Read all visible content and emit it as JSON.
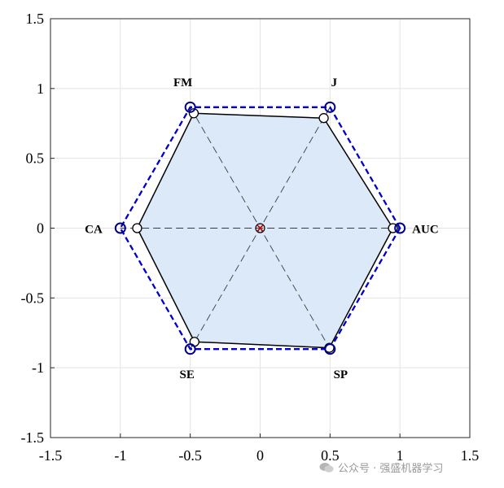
{
  "chart_data": {
    "type": "radar-hexagon",
    "xlim": [
      -1.5,
      1.5
    ],
    "ylim": [
      -1.5,
      1.5
    ],
    "xticks": [
      "-1.5",
      "-1",
      "-0.5",
      "0",
      "0.5",
      "1",
      "1.5"
    ],
    "yticks": [
      "1.5",
      "1",
      "0.5",
      "0",
      "-0.5",
      "-1",
      "-1.5"
    ],
    "grid": true,
    "axes_labels": [
      "AUC",
      "J",
      "FM",
      "CA",
      "SE",
      "SP"
    ],
    "axes_angles_deg": [
      0,
      60,
      120,
      180,
      240,
      300
    ],
    "series": [
      {
        "values": [
          0.95,
          0.91,
          0.95,
          0.88,
          0.94,
          0.99
        ],
        "color": "#000000",
        "fill": "#dce9f8",
        "line": "solid"
      },
      {
        "values": [
          1,
          1,
          1,
          1,
          1,
          1
        ],
        "color": "#0000cc",
        "line": "dashed"
      }
    ],
    "center_marker_color": "#cc0000"
  },
  "watermark": {
    "text": "公众号 · 强盛机器学习"
  }
}
